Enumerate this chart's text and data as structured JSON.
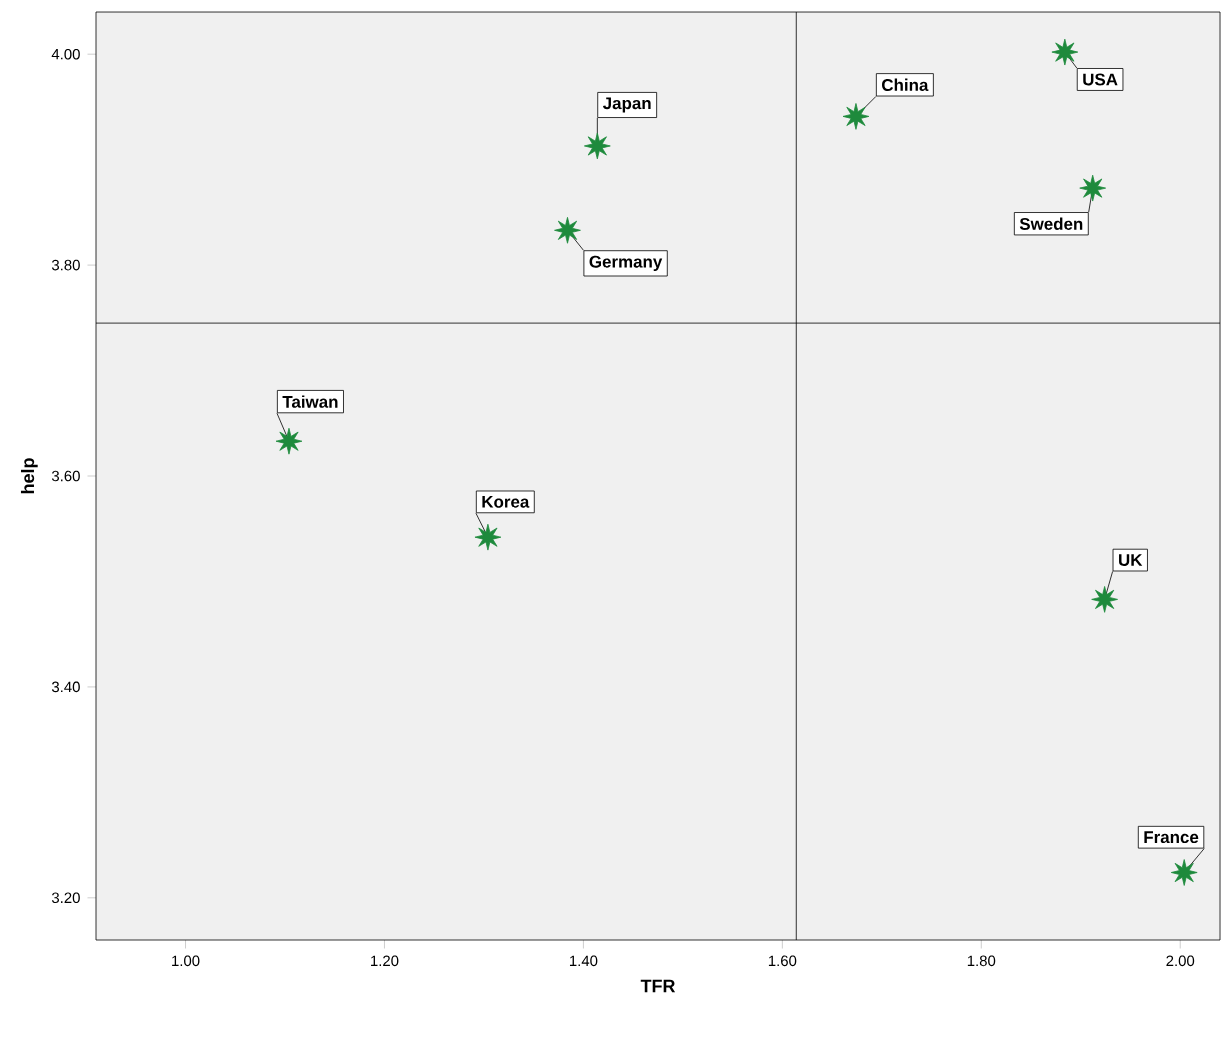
{
  "chart_data": {
    "type": "scatter",
    "xlabel": "TFR",
    "ylabel": "help",
    "x": [
      1.414,
      1.384,
      1.674,
      1.884,
      1.912,
      1.104,
      1.304,
      1.924,
      2.004
    ],
    "series": [
      {
        "color": "#1e8a3c",
        "values": [
          3.913,
          3.833,
          3.941,
          4.002,
          3.873,
          3.633,
          3.542,
          3.483,
          3.224
        ]
      }
    ],
    "marker": "star",
    "xlim": [
      0.91,
      2.04
    ],
    "ylim": [
      3.16,
      4.04
    ],
    "xticks": [
      {
        "value": 1.0,
        "label": "1.00"
      },
      {
        "value": 1.2,
        "label": "1.20"
      },
      {
        "value": 1.4,
        "label": "1.40"
      },
      {
        "value": 1.6,
        "label": "1.60"
      },
      {
        "value": 1.8,
        "label": "1.80"
      },
      {
        "value": 2.0,
        "label": "2.00"
      }
    ],
    "yticks": [
      {
        "value": 3.2,
        "label": "3.20"
      },
      {
        "value": 3.4,
        "label": "3.40"
      },
      {
        "value": 3.6,
        "label": "3.60"
      },
      {
        "value": 3.8,
        "label": "3.80"
      },
      {
        "value": 4.0,
        "label": "4.00"
      }
    ],
    "ref_lines": [
      {
        "axis": "x",
        "value": 1.614,
        "color": "#000000"
      },
      {
        "axis": "y",
        "value": 3.745,
        "color": "#000000"
      }
    ],
    "annotations": [
      {
        "text": "Japan",
        "x": 1.414,
        "y": 3.913
      },
      {
        "text": "Germany",
        "x": 1.384,
        "y": 3.833
      },
      {
        "text": "China",
        "x": 1.674,
        "y": 3.941
      },
      {
        "text": "USA",
        "x": 1.884,
        "y": 4.002
      },
      {
        "text": "Sweden",
        "x": 1.912,
        "y": 3.873
      },
      {
        "text": "Taiwan",
        "x": 1.104,
        "y": 3.633
      },
      {
        "text": "Korea",
        "x": 1.304,
        "y": 3.542
      },
      {
        "text": "UK",
        "x": 1.924,
        "y": 3.483
      },
      {
        "text": "France",
        "x": 2.004,
        "y": 3.224
      }
    ]
  }
}
